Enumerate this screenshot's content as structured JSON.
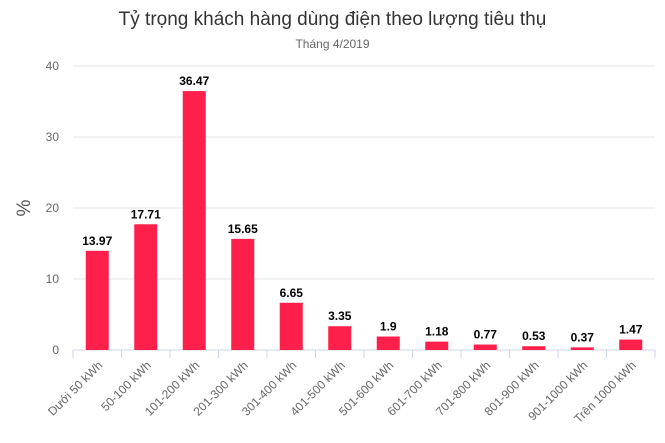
{
  "chart_data": {
    "type": "bar",
    "title": "Tỷ trọng khách hàng dùng điện theo lượng tiêu thụ",
    "subtitle": "Tháng 4/2019",
    "ylabel": "%",
    "xlabel": "",
    "ylim": [
      0,
      40
    ],
    "yticks": [
      0,
      10,
      20,
      30,
      40
    ],
    "grid": true,
    "legend": "none",
    "bar_color": "#FF1F4B",
    "categories": [
      "Dưới 50 kWh",
      "50-100 kWh",
      "101-200 kWh",
      "201-300 kWh",
      "301-400 kWh",
      "401-500 kWh",
      "501-600 kWh",
      "601-700 kWh",
      "701-800 kWh",
      "801-900 kWh",
      "901-1000 kWh",
      "Trên 1000 kWh"
    ],
    "values": [
      13.97,
      17.71,
      36.47,
      15.65,
      6.65,
      3.35,
      1.9,
      1.18,
      0.77,
      0.53,
      0.37,
      1.47
    ],
    "value_labels": [
      "13.97",
      "17.71",
      "36.47",
      "15.65",
      "6.65",
      "3.35",
      "1.9",
      "1.18",
      "0.77",
      "0.53",
      "0.37",
      "1.47"
    ]
  }
}
